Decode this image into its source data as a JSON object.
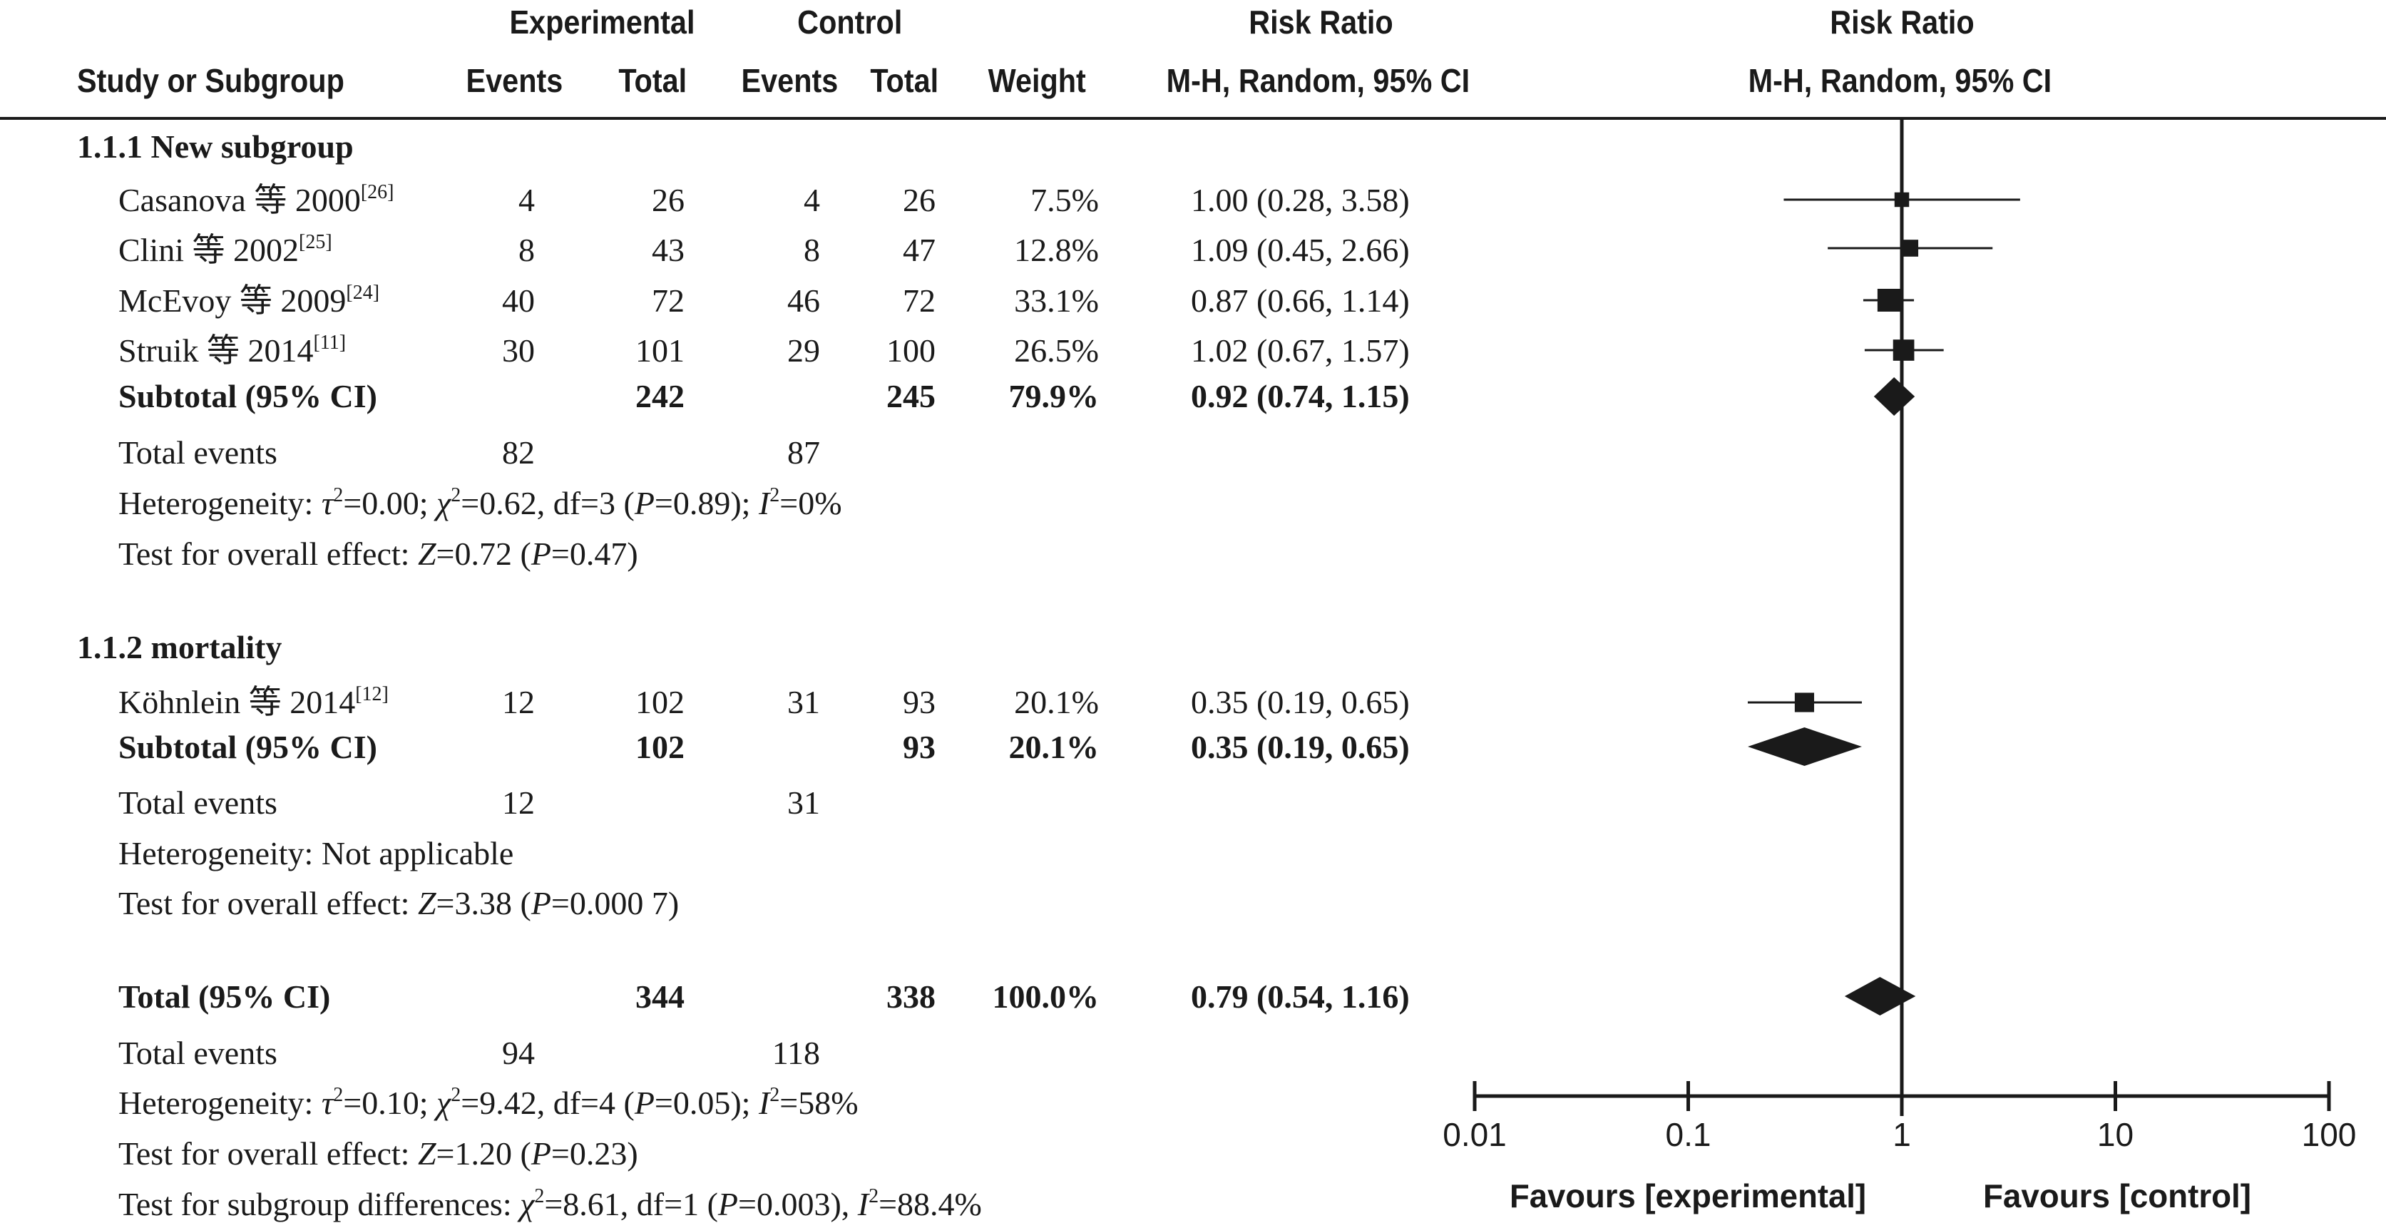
{
  "header": {
    "group_experimental": "Experimental",
    "group_control": "Control",
    "col_risk_ratio": "Risk Ratio",
    "col_study": "Study or Subgroup",
    "col_events": "Events",
    "col_total": "Total",
    "col_weight": "Weight",
    "col_method": "M-H, Random, 95% CI",
    "plot_title": "Risk Ratio",
    "plot_method": "M-H, Random, 95% CI"
  },
  "subgroup1": {
    "title": "1.1.1 New subgroup",
    "rows": [
      {
        "study": "Casanova 等 2000",
        "ref": "[26]",
        "exp_events": "4",
        "exp_total": "26",
        "ctl_events": "4",
        "ctl_total": "26",
        "weight": "7.5%",
        "ci": "1.00 (0.28, 3.58)"
      },
      {
        "study": "Clini 等 2002",
        "ref": "[25]",
        "exp_events": "8",
        "exp_total": "43",
        "ctl_events": "8",
        "ctl_total": "47",
        "weight": "12.8%",
        "ci": "1.09 (0.45, 2.66)"
      },
      {
        "study": "McEvoy 等 2009",
        "ref": "[24]",
        "exp_events": "40",
        "exp_total": "72",
        "ctl_events": "46",
        "ctl_total": "72",
        "weight": "33.1%",
        "ci": "0.87 (0.66, 1.14)"
      },
      {
        "study": "Struik 等 2014",
        "ref": "[11]",
        "exp_events": "30",
        "exp_total": "101",
        "ctl_events": "29",
        "ctl_total": "100",
        "weight": "26.5%",
        "ci": "1.02 (0.67, 1.57)"
      }
    ],
    "subtotal": {
      "label": "Subtotal (95% CI)",
      "exp_total": "242",
      "ctl_total": "245",
      "weight": "79.9%",
      "ci": "0.92 (0.74, 1.15)"
    },
    "total_events": {
      "label": "Total events",
      "exp": "82",
      "ctl": "87"
    },
    "heterogeneity": {
      "lead": "Heterogeneity: ",
      "tau": "τ",
      "tau_eq": "=0.00; ",
      "chi": "χ",
      "chi_eq": "=0.62, df=3 (",
      "p": "P",
      "p_eq": "=0.89); ",
      "i": "I",
      "i_eq": "=0%"
    },
    "overall": {
      "lead": "Test for overall effect: ",
      "z": "Z",
      "z_eq": "=0.72 (",
      "p": "P",
      "p_eq": "=0.47)"
    }
  },
  "subgroup2": {
    "title": "1.1.2 mortality",
    "rows": [
      {
        "study": "Köhnlein 等 2014",
        "ref": "[12]",
        "exp_events": "12",
        "exp_total": "102",
        "ctl_events": "31",
        "ctl_total": "93",
        "weight": "20.1%",
        "ci": "0.35 (0.19, 0.65)"
      }
    ],
    "subtotal": {
      "label": "Subtotal (95% CI)",
      "exp_total": "102",
      "ctl_total": "93",
      "weight": "20.1%",
      "ci": "0.35 (0.19, 0.65)"
    },
    "total_events": {
      "label": "Total events",
      "exp": "12",
      "ctl": "31"
    },
    "heterogeneity_text": "Heterogeneity: Not applicable",
    "overall": {
      "lead": "Test for overall effect: ",
      "z": "Z",
      "z_eq": "=3.38 (",
      "p": "P",
      "p_eq": "=0.000 7)"
    }
  },
  "total": {
    "label": "Total (95% CI)",
    "exp_total": "344",
    "ctl_total": "338",
    "weight": "100.0%",
    "ci": "0.79 (0.54, 1.16)",
    "total_events": {
      "label": "Total events",
      "exp": "94",
      "ctl": "118"
    },
    "heterogeneity": {
      "lead": "Heterogeneity: ",
      "tau": "τ",
      "tau_eq": "=0.10; ",
      "chi": "χ",
      "chi_eq": "=9.42, df=4 (",
      "p": "P",
      "p_eq": "=0.05); ",
      "i": "I",
      "i_eq": "=58%"
    },
    "overall": {
      "lead": "Test for overall effect: ",
      "z": "Z",
      "z_eq": "=1.20 (",
      "p": "P",
      "p_eq": "=0.23)"
    },
    "subgroup_diff": {
      "lead": "Test for subgroup differences: ",
      "chi": "χ",
      "chi_eq": "=8.61, df=1 (",
      "p": "P",
      "p_eq": "=0.003), ",
      "i": "I",
      "i_eq": "=88.4%"
    }
  },
  "chart_data": {
    "type": "forest",
    "scale": "log",
    "xlim": [
      0.01,
      100
    ],
    "ticks": [
      0.01,
      0.1,
      1,
      10,
      100
    ],
    "tick_labels": [
      "0.01",
      "0.1",
      "1",
      "10",
      "100"
    ],
    "reference_line": 1,
    "favours_left": "Favours [experimental]",
    "favours_right": "Favours [control]",
    "studies": [
      {
        "name": "Casanova 等 2000",
        "rr": 1.0,
        "lo": 0.28,
        "hi": 3.58,
        "weight": 7.5
      },
      {
        "name": "Clini 等 2002",
        "rr": 1.09,
        "lo": 0.45,
        "hi": 2.66,
        "weight": 12.8
      },
      {
        "name": "McEvoy 等 2009",
        "rr": 0.87,
        "lo": 0.66,
        "hi": 1.14,
        "weight": 33.1
      },
      {
        "name": "Struik 等 2014",
        "rr": 1.02,
        "lo": 0.67,
        "hi": 1.57,
        "weight": 26.5
      },
      {
        "name": "Köhnlein 等 2014",
        "rr": 0.35,
        "lo": 0.19,
        "hi": 0.65,
        "weight": 20.1
      }
    ],
    "summaries": [
      {
        "name": "Subtotal 1.1.1",
        "rr": 0.92,
        "lo": 0.74,
        "hi": 1.15
      },
      {
        "name": "Subtotal 1.1.2",
        "rr": 0.35,
        "lo": 0.19,
        "hi": 0.65
      },
      {
        "name": "Total",
        "rr": 0.79,
        "lo": 0.54,
        "hi": 1.16
      }
    ]
  }
}
